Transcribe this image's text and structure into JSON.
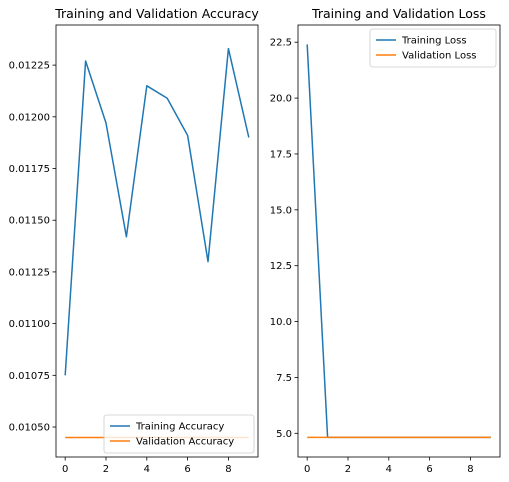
{
  "chart_data": [
    {
      "type": "line",
      "title": "Training and Validation Accuracy",
      "xlabel": "",
      "ylabel": "",
      "xlim": [
        -0.45,
        9.45
      ],
      "ylim": [
        0.010355,
        0.012444
      ],
      "x_ticks": [
        0,
        2,
        4,
        6,
        8
      ],
      "y_ticks": [
        0.0105,
        0.01075,
        0.011,
        0.01125,
        0.0115,
        0.01175,
        0.012,
        0.01225
      ],
      "y_tick_labels": [
        "0.01050",
        "0.01075",
        "0.01100",
        "0.01125",
        "0.01150",
        "0.01175",
        "0.01200",
        "0.01225"
      ],
      "grid": false,
      "legend_position": "lower-right",
      "x": [
        0,
        1,
        2,
        3,
        4,
        5,
        6,
        7,
        8,
        9
      ],
      "series": [
        {
          "name": "Training Accuracy",
          "color": "#1f77b4",
          "values": [
            0.01075,
            0.01227,
            0.01197,
            0.01142,
            0.01215,
            0.01209,
            0.01191,
            0.0113,
            0.01233,
            0.0119
          ]
        },
        {
          "name": "Validation Accuracy",
          "color": "#ff7f0e",
          "values": [
            0.010449,
            0.010449,
            0.010449,
            0.010449,
            0.010449,
            0.010449,
            0.010449,
            0.010449,
            0.010449,
            0.010449
          ]
        }
      ]
    },
    {
      "type": "line",
      "title": "Training and Validation Loss",
      "xlabel": "",
      "ylabel": "",
      "xlim": [
        -0.45,
        9.45
      ],
      "ylim": [
        3.94,
        23.27
      ],
      "x_ticks": [
        0,
        2,
        4,
        6,
        8
      ],
      "y_ticks": [
        5.0,
        7.5,
        10.0,
        12.5,
        15.0,
        17.5,
        20.0,
        22.5
      ],
      "y_tick_labels": [
        "5.0",
        "7.5",
        "10.0",
        "12.5",
        "15.0",
        "17.5",
        "20.0",
        "22.5"
      ],
      "grid": false,
      "legend_position": "upper-right",
      "x": [
        0,
        1,
        2,
        3,
        4,
        5,
        6,
        7,
        8,
        9
      ],
      "series": [
        {
          "name": "Training Loss",
          "color": "#1f77b4",
          "values": [
            22.4,
            4.82,
            4.82,
            4.82,
            4.82,
            4.82,
            4.82,
            4.82,
            4.82,
            4.82
          ]
        },
        {
          "name": "Validation Loss",
          "color": "#ff7f0e",
          "values": [
            4.82,
            4.82,
            4.82,
            4.82,
            4.82,
            4.82,
            4.82,
            4.82,
            4.82,
            4.82
          ]
        }
      ]
    }
  ]
}
